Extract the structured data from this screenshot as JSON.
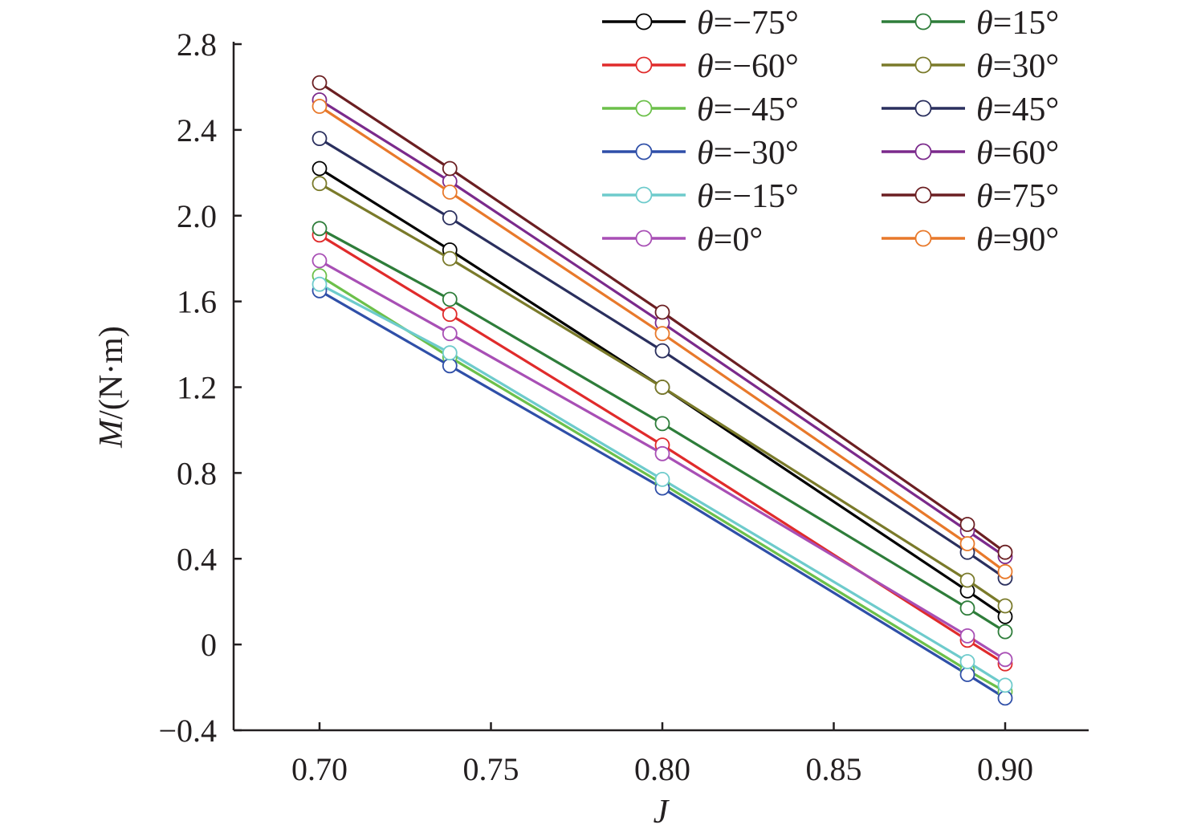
{
  "chart_data": {
    "type": "line",
    "title": "",
    "xlabel": "J",
    "ylabel_italic": "M",
    "ylabel_rest": "/(N·m)",
    "xlim": [
      0.675,
      0.925
    ],
    "ylim": [
      -0.4,
      2.8
    ],
    "xticks": [
      0.7,
      0.75,
      0.8,
      0.85,
      0.9
    ],
    "xtick_labels": [
      "0.70",
      "0.75",
      "0.80",
      "0.85",
      "0.90"
    ],
    "yticks": [
      -0.4,
      0,
      0.4,
      0.8,
      1.2,
      1.6,
      2.0,
      2.4,
      2.8
    ],
    "ytick_labels": [
      "−0.4",
      "0",
      "0.4",
      "0.8",
      "1.2",
      "1.6",
      "2.0",
      "2.4",
      "2.8"
    ],
    "x": [
      0.7,
      0.738,
      0.8,
      0.889,
      0.9
    ],
    "grid": false,
    "legend_placement": "top-right",
    "legend_var": "θ",
    "series": [
      {
        "name": "=−75°",
        "color": "#000000",
        "values": [
          2.22,
          1.84,
          1.2,
          0.25,
          0.13
        ]
      },
      {
        "name": "=−60°",
        "color": "#e02b2b",
        "values": [
          1.91,
          1.54,
          0.93,
          0.02,
          -0.09
        ]
      },
      {
        "name": "=−45°",
        "color": "#6cc04a",
        "values": [
          1.72,
          1.34,
          0.75,
          -0.12,
          -0.22
        ]
      },
      {
        "name": "=−30°",
        "color": "#2f4fa8",
        "values": [
          1.65,
          1.3,
          0.73,
          -0.14,
          -0.25
        ]
      },
      {
        "name": "=−15°",
        "color": "#6ecbcc",
        "values": [
          1.68,
          1.36,
          0.77,
          -0.08,
          -0.19
        ]
      },
      {
        "name": "=0°",
        "color": "#a84fb5",
        "values": [
          1.79,
          1.45,
          0.89,
          0.04,
          -0.07
        ]
      },
      {
        "name": "=15°",
        "color": "#2e7d3a",
        "values": [
          1.94,
          1.61,
          1.03,
          0.17,
          0.06
        ]
      },
      {
        "name": "=30°",
        "color": "#7a7a2a",
        "values": [
          2.15,
          1.8,
          1.2,
          0.3,
          0.18
        ]
      },
      {
        "name": "=45°",
        "color": "#2a2f5e",
        "values": [
          2.36,
          1.99,
          1.37,
          0.43,
          0.31
        ]
      },
      {
        "name": "=60°",
        "color": "#7b2a8c",
        "values": [
          2.54,
          2.16,
          1.5,
          0.53,
          0.41
        ]
      },
      {
        "name": "=75°",
        "color": "#6b1f22",
        "values": [
          2.62,
          2.22,
          1.55,
          0.56,
          0.43
        ]
      },
      {
        "name": "=90°",
        "color": "#e8792b",
        "values": [
          2.51,
          2.11,
          1.45,
          0.47,
          0.34
        ]
      }
    ]
  }
}
